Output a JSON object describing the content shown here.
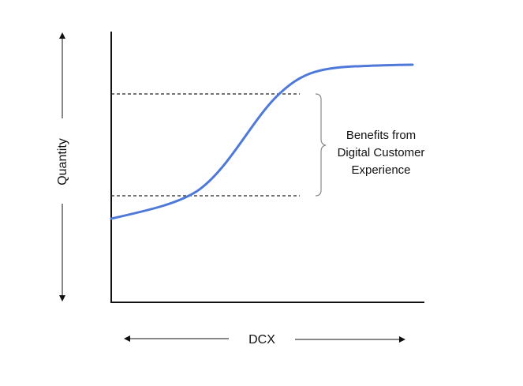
{
  "diagram": {
    "y_axis_label": "Quantity",
    "x_axis_label": "DCX",
    "annotation_lines": [
      "Benefits from",
      "Digital Customer",
      "Experience"
    ],
    "colors": {
      "curve": "#4f79d8",
      "axis": "#111111",
      "dashed": "#222222"
    }
  }
}
